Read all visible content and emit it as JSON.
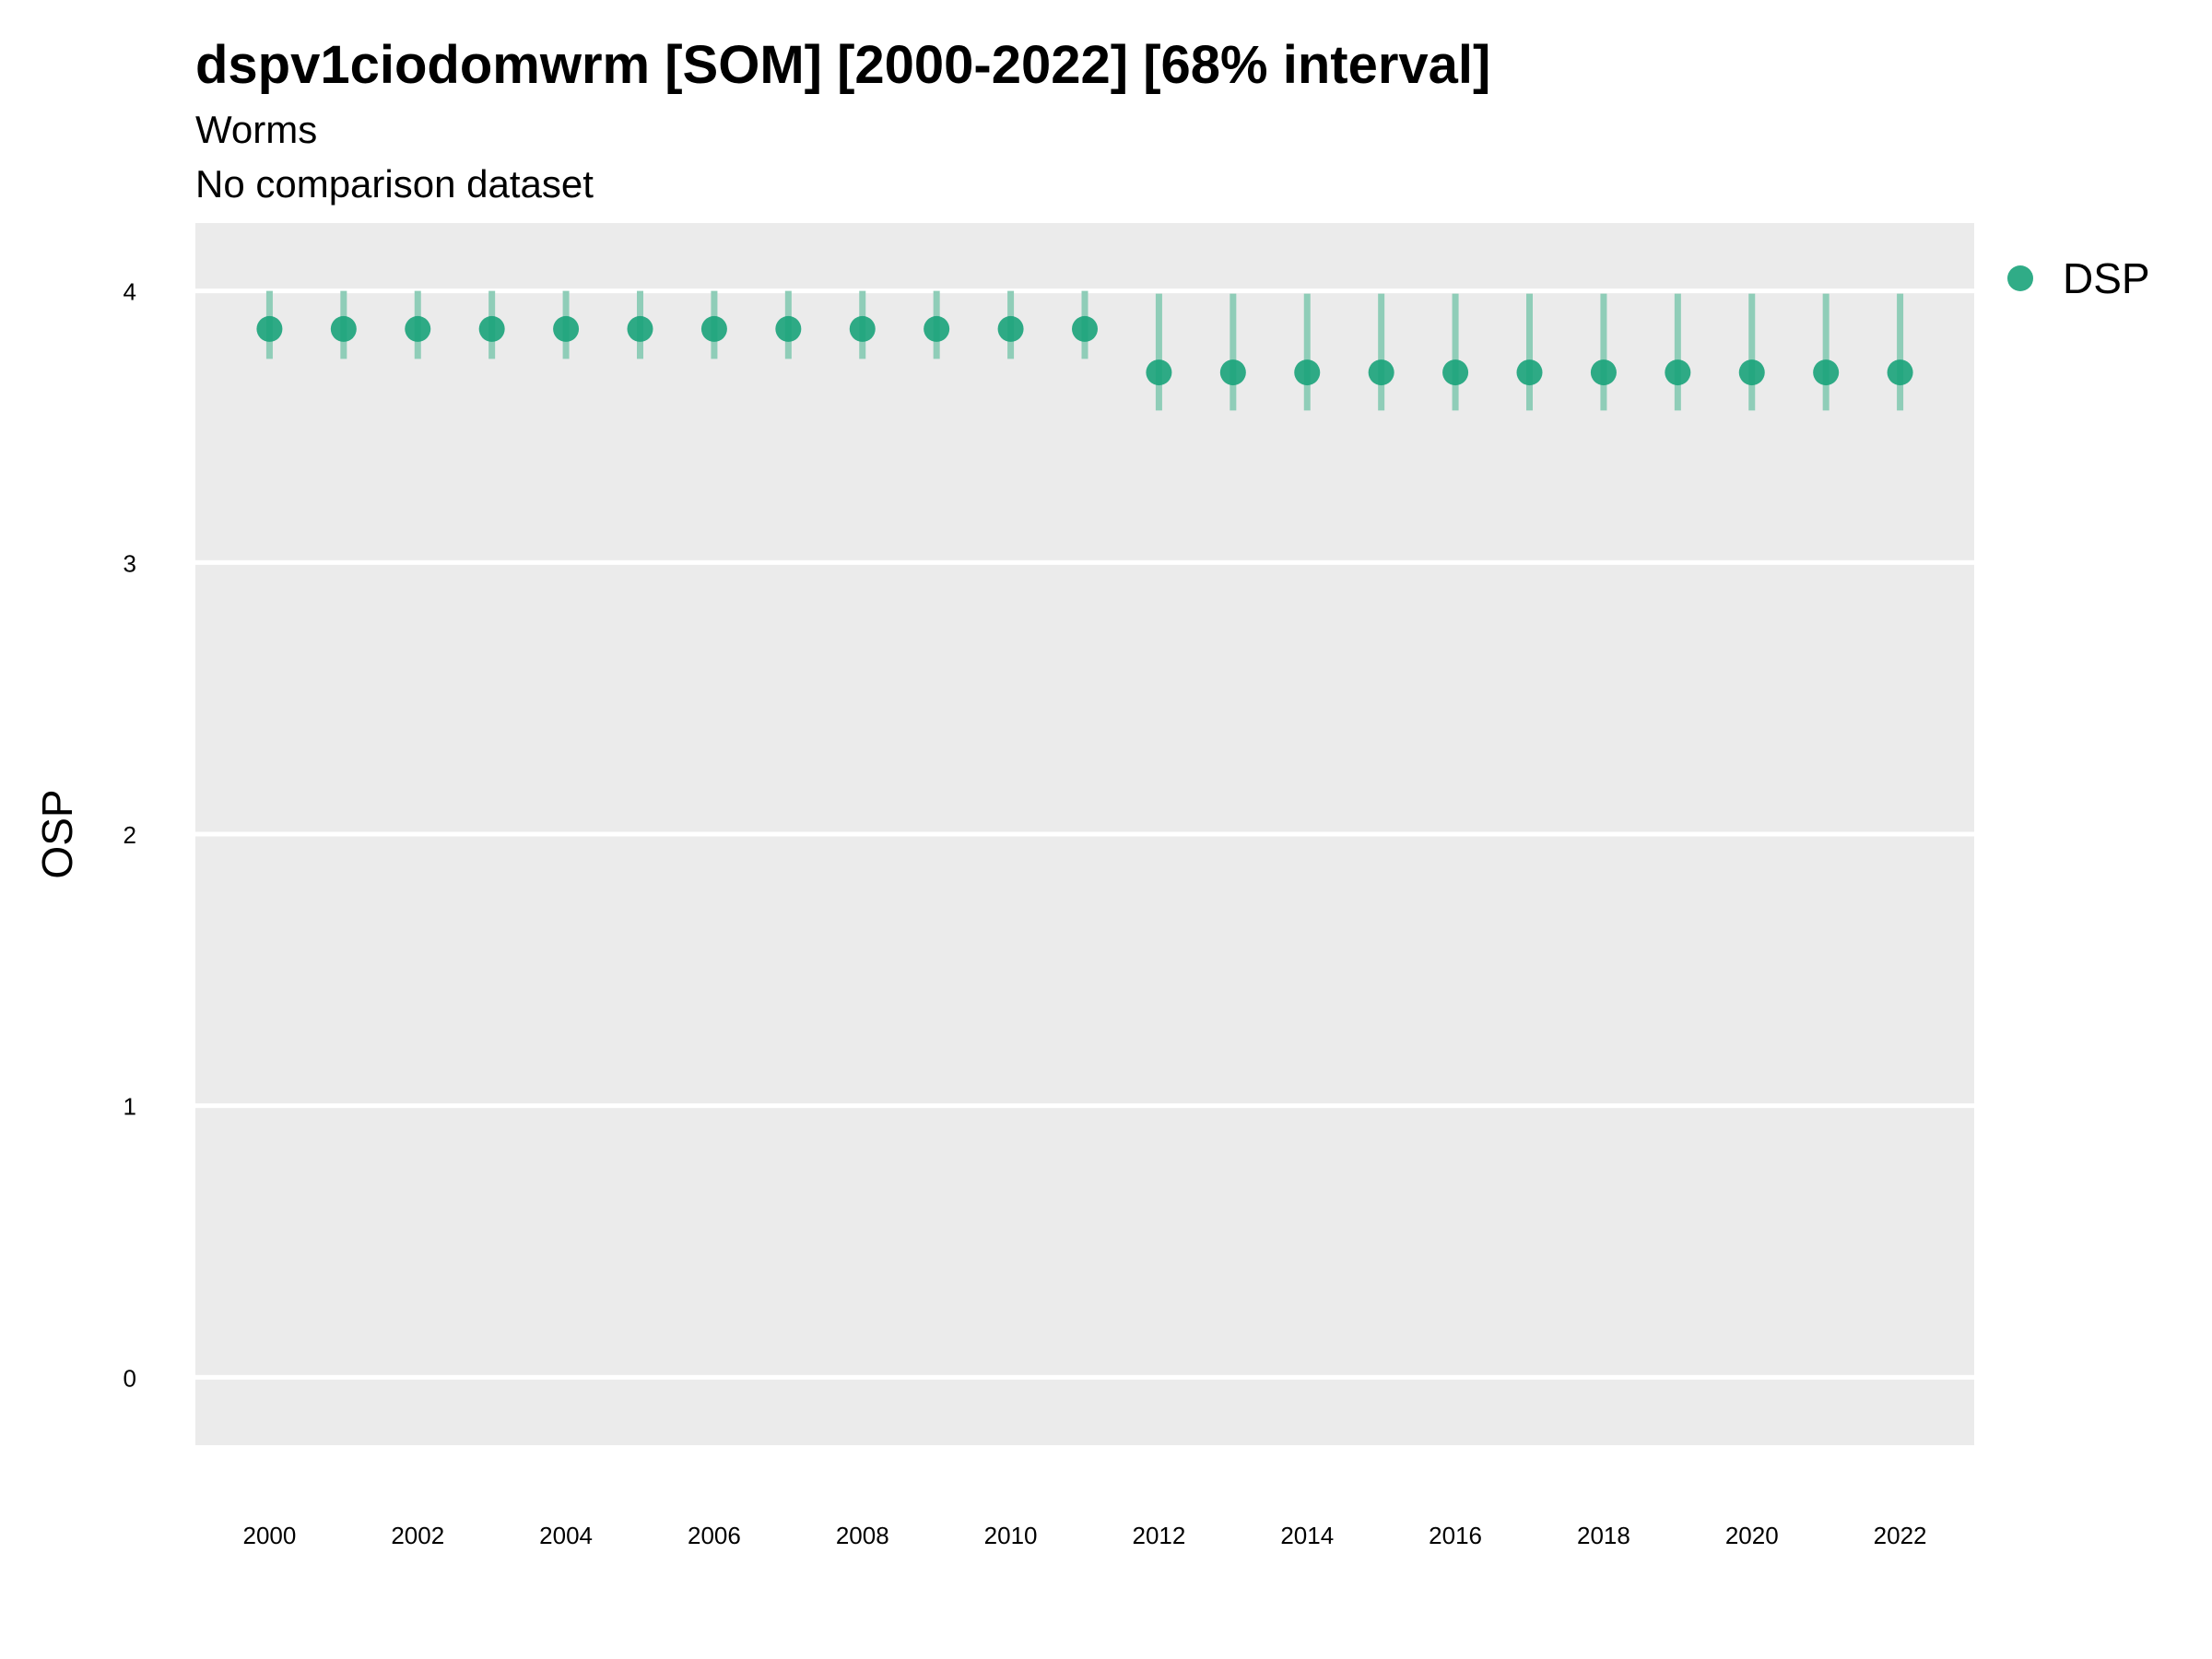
{
  "chart_data": {
    "type": "scatter",
    "title": "dspv1ciodomwrm [SOM] [2000-2022] [68% interval]",
    "subtitle": "Worms",
    "caption_line": "No comparison dataset",
    "xlabel": "",
    "ylabel": "OSP",
    "xlim": [
      1999,
      2023
    ],
    "ylim": [
      -0.25,
      4.25
    ],
    "x_ticks": [
      2000,
      2002,
      2004,
      2006,
      2008,
      2010,
      2012,
      2014,
      2016,
      2018,
      2020,
      2022
    ],
    "y_ticks": [
      0,
      1,
      2,
      3,
      4
    ],
    "grid": true,
    "legend_position": "right",
    "colors": {
      "point": "#1aa37a",
      "errorbar": "#8fcdb8",
      "panel": "#ebebeb",
      "gridline": "#ffffff"
    },
    "series": [
      {
        "name": "DSP",
        "x": [
          2000,
          2001,
          2002,
          2003,
          2004,
          2005,
          2006,
          2007,
          2008,
          2009,
          2010,
          2011,
          2012,
          2013,
          2014,
          2015,
          2016,
          2017,
          2018,
          2019,
          2020,
          2021,
          2022
        ],
        "y": [
          3.86,
          3.86,
          3.86,
          3.86,
          3.86,
          3.86,
          3.86,
          3.86,
          3.86,
          3.86,
          3.86,
          3.86,
          3.7,
          3.7,
          3.7,
          3.7,
          3.7,
          3.7,
          3.7,
          3.7,
          3.7,
          3.7,
          3.7
        ],
        "lower": [
          3.75,
          3.75,
          3.75,
          3.75,
          3.75,
          3.75,
          3.75,
          3.75,
          3.75,
          3.75,
          3.75,
          3.75,
          3.56,
          3.56,
          3.56,
          3.56,
          3.56,
          3.56,
          3.56,
          3.56,
          3.56,
          3.56,
          3.56
        ],
        "upper": [
          4.0,
          4.0,
          4.0,
          4.0,
          4.0,
          4.0,
          4.0,
          4.0,
          4.0,
          4.0,
          4.0,
          4.0,
          3.99,
          3.99,
          3.99,
          3.99,
          3.99,
          3.99,
          3.99,
          3.99,
          3.99,
          3.99,
          3.99
        ]
      }
    ]
  }
}
